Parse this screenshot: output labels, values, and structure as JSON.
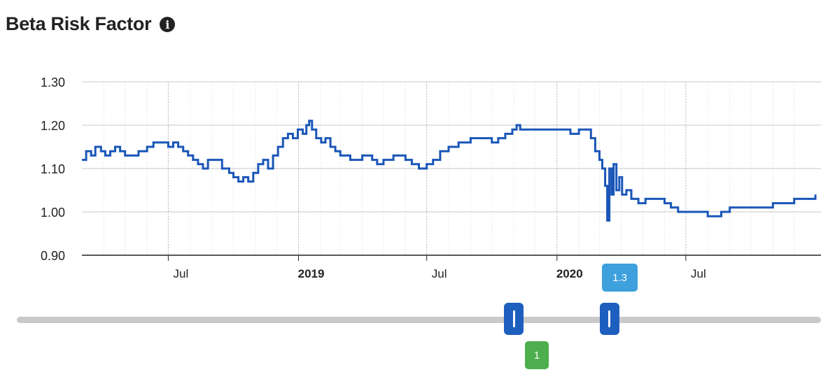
{
  "title": "Beta Risk Factor",
  "info_icon": "info-circle-icon",
  "chart_data": {
    "type": "line",
    "title": "Beta Risk Factor",
    "xlabel": "",
    "ylabel": "",
    "ylim": [
      0.9,
      1.3
    ],
    "y_ticks": [
      "1.30",
      "1.20",
      "1.10",
      "1.00",
      "0.90"
    ],
    "x_ticks": [
      {
        "date": "2018-07-01",
        "label": "Jul",
        "bold": false
      },
      {
        "date": "2019-01-01",
        "label": "2019",
        "bold": true
      },
      {
        "date": "2019-07-01",
        "label": "Jul",
        "bold": false
      },
      {
        "date": "2020-01-01",
        "label": "2020",
        "bold": true
      },
      {
        "date": "2020-07-01",
        "label": "Jul",
        "bold": false
      }
    ],
    "xlim": [
      "2018-03-01",
      "2020-12-31"
    ],
    "grid": true,
    "line_color": "#1a56b8",
    "series": [
      {
        "points": [
          [
            "2018-03-01",
            1.12
          ],
          [
            "2018-03-07",
            1.14
          ],
          [
            "2018-03-14",
            1.13
          ],
          [
            "2018-03-20",
            1.15
          ],
          [
            "2018-03-28",
            1.14
          ],
          [
            "2018-04-03",
            1.13
          ],
          [
            "2018-04-10",
            1.14
          ],
          [
            "2018-04-17",
            1.15
          ],
          [
            "2018-04-24",
            1.14
          ],
          [
            "2018-05-01",
            1.13
          ],
          [
            "2018-05-20",
            1.14
          ],
          [
            "2018-06-01",
            1.15
          ],
          [
            "2018-06-10",
            1.16
          ],
          [
            "2018-06-25",
            1.16
          ],
          [
            "2018-07-01",
            1.15
          ],
          [
            "2018-07-08",
            1.16
          ],
          [
            "2018-07-15",
            1.15
          ],
          [
            "2018-07-22",
            1.14
          ],
          [
            "2018-07-29",
            1.13
          ],
          [
            "2018-08-05",
            1.12
          ],
          [
            "2018-08-12",
            1.11
          ],
          [
            "2018-08-19",
            1.1
          ],
          [
            "2018-08-26",
            1.12
          ],
          [
            "2018-09-08",
            1.12
          ],
          [
            "2018-09-15",
            1.1
          ],
          [
            "2018-09-25",
            1.09
          ],
          [
            "2018-10-01",
            1.08
          ],
          [
            "2018-10-08",
            1.07
          ],
          [
            "2018-10-15",
            1.08
          ],
          [
            "2018-10-22",
            1.07
          ],
          [
            "2018-10-29",
            1.09
          ],
          [
            "2018-11-05",
            1.11
          ],
          [
            "2018-11-12",
            1.12
          ],
          [
            "2018-11-19",
            1.1
          ],
          [
            "2018-11-26",
            1.13
          ],
          [
            "2018-12-03",
            1.15
          ],
          [
            "2018-12-10",
            1.17
          ],
          [
            "2018-12-17",
            1.18
          ],
          [
            "2018-12-24",
            1.17
          ],
          [
            "2018-12-31",
            1.19
          ],
          [
            "2019-01-07",
            1.18
          ],
          [
            "2019-01-12",
            1.2
          ],
          [
            "2019-01-16",
            1.21
          ],
          [
            "2019-01-20",
            1.19
          ],
          [
            "2019-01-26",
            1.17
          ],
          [
            "2019-02-02",
            1.16
          ],
          [
            "2019-02-08",
            1.17
          ],
          [
            "2019-02-15",
            1.15
          ],
          [
            "2019-02-22",
            1.14
          ],
          [
            "2019-03-01",
            1.13
          ],
          [
            "2019-03-15",
            1.12
          ],
          [
            "2019-04-01",
            1.13
          ],
          [
            "2019-04-15",
            1.12
          ],
          [
            "2019-04-22",
            1.11
          ],
          [
            "2019-05-01",
            1.12
          ],
          [
            "2019-05-15",
            1.13
          ],
          [
            "2019-06-01",
            1.12
          ],
          [
            "2019-06-10",
            1.11
          ],
          [
            "2019-06-20",
            1.1
          ],
          [
            "2019-07-01",
            1.11
          ],
          [
            "2019-07-10",
            1.12
          ],
          [
            "2019-07-20",
            1.14
          ],
          [
            "2019-08-01",
            1.15
          ],
          [
            "2019-08-15",
            1.16
          ],
          [
            "2019-09-01",
            1.17
          ],
          [
            "2019-09-15",
            1.17
          ],
          [
            "2019-10-01",
            1.16
          ],
          [
            "2019-10-10",
            1.17
          ],
          [
            "2019-10-20",
            1.18
          ],
          [
            "2019-10-30",
            1.19
          ],
          [
            "2019-11-05",
            1.2
          ],
          [
            "2019-11-10",
            1.19
          ],
          [
            "2019-12-01",
            1.19
          ],
          [
            "2019-12-15",
            1.19
          ],
          [
            "2020-01-01",
            1.19
          ],
          [
            "2020-01-10",
            1.19
          ],
          [
            "2020-01-20",
            1.18
          ],
          [
            "2020-02-01",
            1.19
          ],
          [
            "2020-02-12",
            1.19
          ],
          [
            "2020-02-18",
            1.17
          ],
          [
            "2020-02-24",
            1.14
          ],
          [
            "2020-03-01",
            1.12
          ],
          [
            "2020-03-05",
            1.1
          ],
          [
            "2020-03-09",
            1.06
          ],
          [
            "2020-03-12",
            0.98
          ],
          [
            "2020-03-15",
            1.1
          ],
          [
            "2020-03-18",
            1.04
          ],
          [
            "2020-03-21",
            1.11
          ],
          [
            "2020-03-25",
            1.05
          ],
          [
            "2020-03-29",
            1.08
          ],
          [
            "2020-04-02",
            1.04
          ],
          [
            "2020-04-08",
            1.05
          ],
          [
            "2020-04-15",
            1.03
          ],
          [
            "2020-04-25",
            1.02
          ],
          [
            "2020-05-05",
            1.03
          ],
          [
            "2020-05-20",
            1.03
          ],
          [
            "2020-06-01",
            1.02
          ],
          [
            "2020-06-10",
            1.01
          ],
          [
            "2020-06-20",
            1.0
          ],
          [
            "2020-07-01",
            1.0
          ],
          [
            "2020-07-20",
            1.0
          ],
          [
            "2020-08-01",
            0.99
          ],
          [
            "2020-08-20",
            1.0
          ],
          [
            "2020-09-01",
            1.01
          ],
          [
            "2020-10-01",
            1.01
          ],
          [
            "2020-11-01",
            1.02
          ],
          [
            "2020-12-01",
            1.03
          ],
          [
            "2020-12-31",
            1.04
          ]
        ]
      }
    ]
  },
  "range_slider": {
    "start_date": "2019-11-01",
    "end_date": "2020-03-15",
    "end_badge": "1.3",
    "start_badge": "1",
    "track_color": "#c9c9c9",
    "handle_color": "#1d5fbf",
    "end_badge_color": "#3ea0dd",
    "start_badge_color": "#4cae4c"
  }
}
